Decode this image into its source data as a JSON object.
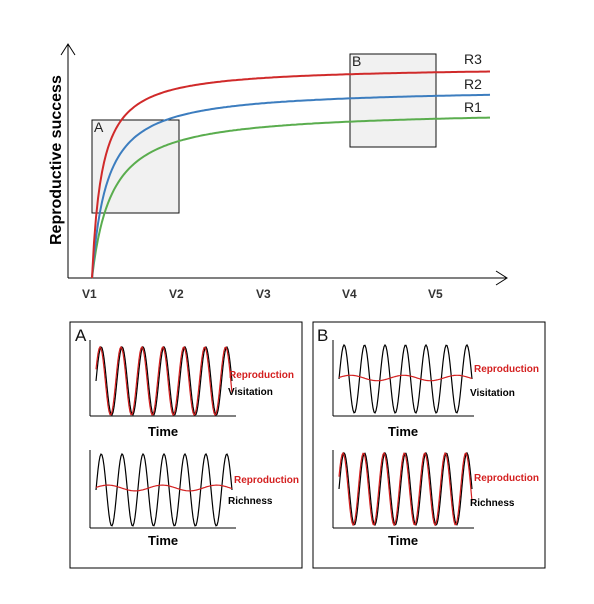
{
  "colors": {
    "r1": "#5aad4e",
    "r2": "#3c7dbf",
    "r3": "#d02a2a",
    "reproduction": "#d42020",
    "oscillation": "#000000",
    "highlight_fill": "#f1f1f1"
  },
  "top_chart": {
    "ylabel": "Reproductive success",
    "x_ticks": [
      "V1",
      "V2",
      "V3",
      "V4",
      "V5"
    ],
    "curves": [
      {
        "label": "R1",
        "color_key": "r1",
        "plateau": 0.78
      },
      {
        "label": "R2",
        "color_key": "r2",
        "plateau": 0.88
      },
      {
        "label": "R3",
        "color_key": "r3",
        "plateau": 0.98
      }
    ],
    "highlight_boxes": [
      {
        "letter": "A"
      },
      {
        "letter": "B"
      }
    ]
  },
  "panel_a": {
    "letter": "A",
    "upper": {
      "red_label": "Reproduction",
      "black_label": "Visitation",
      "time_label": "Time",
      "red_amplitude": 1.0
    },
    "lower": {
      "red_label": "Reproduction",
      "black_label": "Richness",
      "time_label": "Time",
      "red_amplitude": 0.08
    }
  },
  "panel_b": {
    "letter": "B",
    "upper": {
      "red_label": "Reproduction",
      "black_label": "Visitation",
      "time_label": "Time",
      "red_amplitude": 0.08
    },
    "lower": {
      "red_label": "Reproduction",
      "black_label": "Richness",
      "time_label": "Time",
      "red_amplitude": 1.0
    }
  }
}
